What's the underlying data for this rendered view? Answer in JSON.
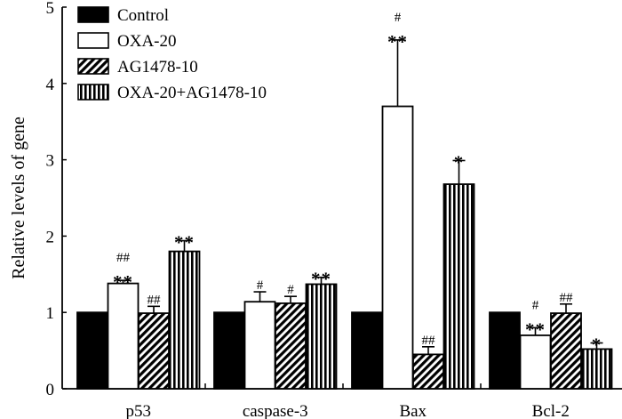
{
  "chart_data": {
    "type": "bar",
    "title": "",
    "xlabel": "",
    "ylabel": "Relative levels of gene",
    "ylim": [
      0,
      5
    ],
    "yticks": [
      "0",
      "1",
      "2",
      "3",
      "4",
      "5"
    ],
    "categories": [
      "p53",
      "caspase-3",
      "Bax",
      "Bcl-2"
    ],
    "legend_position": "top-left",
    "series": [
      {
        "name": "Control",
        "fill": "solid",
        "values": [
          1.0,
          1.0,
          1.0,
          1.0
        ],
        "errors": [
          0,
          0,
          0,
          0
        ],
        "stars": [
          "",
          "",
          "",
          ""
        ],
        "hashes": [
          "",
          "",
          "",
          ""
        ]
      },
      {
        "name": "OXA-20",
        "fill": "open",
        "values": [
          1.38,
          1.14,
          3.7,
          0.7
        ],
        "errors": [
          0.04,
          0.13,
          0.87,
          0.1
        ],
        "stars": [
          "**",
          "",
          "**",
          "**"
        ],
        "hashes": [
          "##",
          "#",
          "#",
          "#"
        ]
      },
      {
        "name": "AG1478-10",
        "fill": "diagonal",
        "values": [
          0.99,
          1.12,
          0.45,
          0.99
        ],
        "errors": [
          0.09,
          0.09,
          0.1,
          0.12
        ],
        "stars": [
          "",
          "",
          "",
          ""
        ],
        "hashes": [
          "##",
          "#",
          "##",
          "##"
        ]
      },
      {
        "name": "OXA-20+AG1478-10",
        "fill": "vertical",
        "values": [
          1.8,
          1.37,
          2.68,
          0.52
        ],
        "errors": [
          0.14,
          0.09,
          0.31,
          0.08
        ],
        "stars": [
          "**",
          "**",
          "*",
          "*"
        ],
        "hashes": [
          "",
          "",
          "",
          ""
        ]
      }
    ]
  }
}
